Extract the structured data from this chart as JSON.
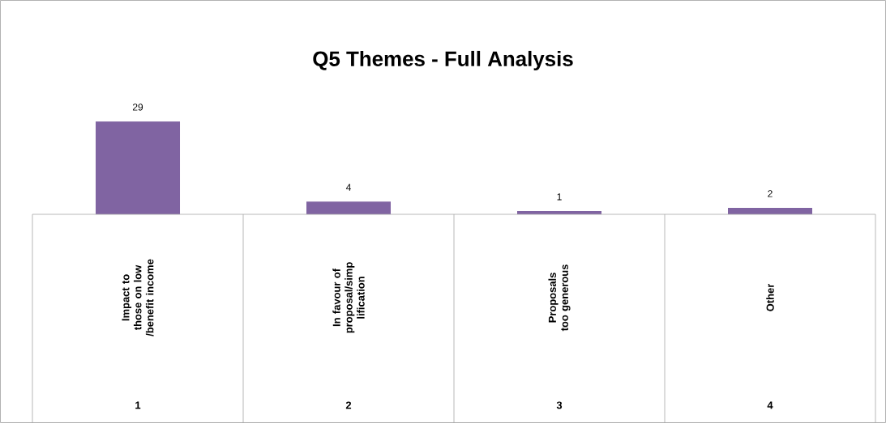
{
  "chart_data": {
    "type": "bar",
    "title": "Q5 Themes - Full Analysis",
    "categories": [
      "Impact to those on low /benefit income",
      "In favour of proposal/simp lification",
      "Proposals too generous",
      "Other"
    ],
    "values": [
      29,
      4,
      1,
      2
    ],
    "color": "#8064a2",
    "data_labels": true,
    "annotations": [
      "1",
      "2",
      "3",
      "4"
    ]
  }
}
